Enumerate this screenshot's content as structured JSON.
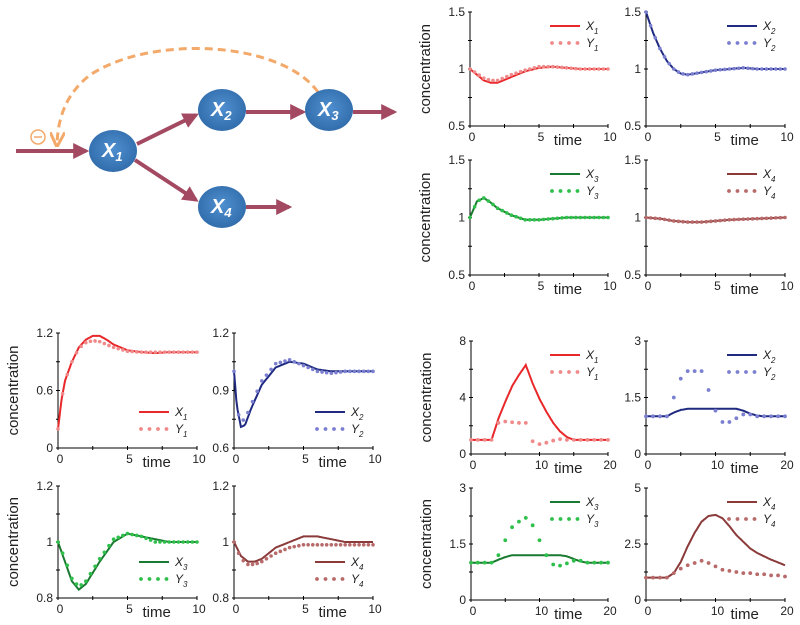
{
  "diagram": {
    "nodes": [
      {
        "id": "X1",
        "letter": "X",
        "sub": "1"
      },
      {
        "id": "X2",
        "letter": "X",
        "sub": "2"
      },
      {
        "id": "X3",
        "letter": "X",
        "sub": "3"
      },
      {
        "id": "X4",
        "letter": "X",
        "sub": "4"
      }
    ],
    "inhibition_symbol": "⊖",
    "colors": {
      "node": "#3a78b8",
      "arrow": "#a34a62",
      "feedback": "#f3a96a"
    }
  },
  "chart_data": [
    {
      "type": "line",
      "group": "A",
      "xlim": [
        0,
        10
      ],
      "ylim": [
        0.5,
        1.5
      ],
      "xticks": [
        0,
        5,
        10
      ],
      "yticks": [
        0.5,
        1,
        1.5
      ],
      "xlabel": "time",
      "ylabel": "concentration",
      "legend_placement": "top-right",
      "series": [
        {
          "name": "X1",
          "style": "solid",
          "color": "#e8282a",
          "x": [
            0,
            0.5,
            1,
            1.5,
            2,
            3,
            4,
            5,
            6,
            7,
            8,
            10
          ],
          "y": [
            1,
            0.95,
            0.9,
            0.88,
            0.88,
            0.93,
            0.98,
            1.01,
            1.02,
            1.01,
            1.0,
            1.0
          ]
        },
        {
          "name": "Y1",
          "style": "dots",
          "color": "#f08a8a",
          "x": [
            0,
            0.5,
            1,
            1.5,
            2,
            3,
            4,
            5,
            6,
            7,
            8,
            10
          ],
          "y": [
            1,
            0.96,
            0.92,
            0.9,
            0.9,
            0.95,
            0.99,
            1.02,
            1.02,
            1.01,
            1.0,
            1.0
          ]
        }
      ]
    },
    {
      "type": "line",
      "group": "A",
      "xlim": [
        0,
        10
      ],
      "ylim": [
        0.5,
        1.5
      ],
      "xticks": [
        0,
        5,
        10
      ],
      "yticks": [
        0.5,
        1,
        1.5
      ],
      "xlabel": "time",
      "ylabel": "",
      "legend_placement": "top-right",
      "series": [
        {
          "name": "X2",
          "style": "solid",
          "color": "#1f2a80",
          "x": [
            0,
            0.5,
            1,
            1.5,
            2,
            2.5,
            3,
            4,
            5,
            6,
            7,
            8,
            10
          ],
          "y": [
            1.5,
            1.32,
            1.18,
            1.07,
            1.0,
            0.96,
            0.95,
            0.97,
            0.99,
            1.0,
            1.01,
            1.0,
            1.0
          ]
        },
        {
          "name": "Y2",
          "style": "dots",
          "color": "#7b7fd0",
          "x": [
            0,
            0.5,
            1,
            1.5,
            2,
            2.5,
            3,
            4,
            5,
            6,
            7,
            8,
            10
          ],
          "y": [
            1.5,
            1.32,
            1.18,
            1.07,
            1.0,
            0.96,
            0.95,
            0.97,
            0.99,
            1.0,
            1.01,
            1.0,
            1.0
          ]
        }
      ]
    },
    {
      "type": "line",
      "group": "A",
      "xlim": [
        0,
        10
      ],
      "ylim": [
        0.5,
        1.5
      ],
      "xticks": [
        0,
        5,
        10
      ],
      "yticks": [
        0.5,
        1,
        1.5
      ],
      "xlabel": "time",
      "ylabel": "concentration",
      "legend_placement": "top-right",
      "series": [
        {
          "name": "X3",
          "style": "solid",
          "color": "#1a7a30",
          "x": [
            0,
            0.5,
            1,
            1.5,
            2,
            3,
            4,
            5,
            6,
            7,
            10
          ],
          "y": [
            1.0,
            1.14,
            1.17,
            1.13,
            1.08,
            1.02,
            0.98,
            0.98,
            0.99,
            1.0,
            1.0
          ]
        },
        {
          "name": "Y3",
          "style": "dots",
          "color": "#2ec04a",
          "x": [
            0,
            0.5,
            1,
            1.5,
            2,
            3,
            4,
            5,
            6,
            7,
            10
          ],
          "y": [
            1.0,
            1.14,
            1.17,
            1.13,
            1.08,
            1.02,
            0.98,
            0.98,
            0.99,
            1.0,
            1.0
          ]
        }
      ]
    },
    {
      "type": "line",
      "group": "A",
      "xlim": [
        0,
        10
      ],
      "ylim": [
        0.5,
        1.5
      ],
      "xticks": [
        0,
        5,
        10
      ],
      "yticks": [
        0.5,
        1,
        1.5
      ],
      "xlabel": "time",
      "ylabel": "",
      "legend_placement": "top-right",
      "series": [
        {
          "name": "X4",
          "style": "solid",
          "color": "#8b3a3a",
          "x": [
            0,
            1,
            2,
            3,
            4,
            5,
            6,
            8,
            10
          ],
          "y": [
            1.0,
            0.99,
            0.97,
            0.96,
            0.96,
            0.97,
            0.98,
            0.99,
            1.0
          ]
        },
        {
          "name": "Y4",
          "style": "dots",
          "color": "#b86a6a",
          "x": [
            0,
            1,
            2,
            3,
            4,
            5,
            6,
            8,
            10
          ],
          "y": [
            1.0,
            0.99,
            0.97,
            0.96,
            0.96,
            0.97,
            0.98,
            0.99,
            1.0
          ]
        }
      ]
    },
    {
      "type": "line",
      "group": "B",
      "xlim": [
        0,
        10
      ],
      "ylim": [
        0,
        1.2
      ],
      "xticks": [
        0,
        5,
        10
      ],
      "yticks": [
        0,
        0.6,
        1.2
      ],
      "xlabel": "time",
      "ylabel": "concentration",
      "legend_placement": "bottom-right",
      "series": [
        {
          "name": "X1",
          "style": "solid",
          "color": "#e8282a",
          "x": [
            0,
            0.25,
            0.5,
            1,
            1.5,
            2,
            2.5,
            3,
            3.5,
            4,
            5,
            6,
            7,
            8,
            10
          ],
          "y": [
            0.2,
            0.5,
            0.7,
            0.9,
            1.05,
            1.13,
            1.17,
            1.17,
            1.13,
            1.08,
            1.02,
            1.0,
            0.99,
            1.0,
            1.0
          ]
        },
        {
          "name": "Y1",
          "style": "dots",
          "color": "#f08a8a",
          "x": [
            0,
            0.25,
            0.5,
            1,
            1.5,
            2,
            2.5,
            3,
            3.5,
            4,
            5,
            6,
            7,
            8,
            10
          ],
          "y": [
            0.2,
            0.5,
            0.7,
            0.9,
            1.04,
            1.1,
            1.12,
            1.11,
            1.08,
            1.05,
            1.01,
            1.0,
            1.0,
            1.0,
            1.0
          ]
        }
      ]
    },
    {
      "type": "line",
      "group": "B",
      "xlim": [
        0,
        10
      ],
      "ylim": [
        0.6,
        1.2
      ],
      "xticks": [
        0,
        5,
        10
      ],
      "yticks": [
        0.6,
        0.9,
        1.2
      ],
      "xlabel": "time",
      "ylabel": "",
      "legend_placement": "bottom-right",
      "series": [
        {
          "name": "X2",
          "style": "solid",
          "color": "#1f2a80",
          "x": [
            0,
            0.2,
            0.5,
            0.8,
            1.2,
            2,
            3,
            4,
            5,
            6,
            7,
            8,
            10
          ],
          "y": [
            1.0,
            0.82,
            0.71,
            0.72,
            0.8,
            0.93,
            1.02,
            1.05,
            1.04,
            1.01,
            1.0,
            1.0,
            1.0
          ]
        },
        {
          "name": "Y2",
          "style": "dots",
          "color": "#7b7fd0",
          "x": [
            0,
            0.2,
            0.5,
            0.8,
            1.2,
            2,
            3,
            4,
            5,
            6,
            7,
            8,
            10
          ],
          "y": [
            1.0,
            0.8,
            0.74,
            0.75,
            0.82,
            0.95,
            1.04,
            1.06,
            1.03,
            1.0,
            0.99,
            1.0,
            1.0
          ]
        }
      ]
    },
    {
      "type": "line",
      "group": "B",
      "xlim": [
        0,
        10
      ],
      "ylim": [
        0.8,
        1.2
      ],
      "xticks": [
        0,
        5,
        10
      ],
      "yticks": [
        0.8,
        1,
        1.2
      ],
      "xlabel": "time",
      "ylabel": "concentration",
      "legend_placement": "bottom-right",
      "series": [
        {
          "name": "X3",
          "style": "solid",
          "color": "#1a7a30",
          "x": [
            0,
            0.5,
            1,
            1.5,
            2,
            3,
            4,
            5,
            6,
            7,
            8,
            10
          ],
          "y": [
            1.0,
            0.93,
            0.86,
            0.83,
            0.85,
            0.93,
            1.0,
            1.03,
            1.02,
            1.01,
            1.0,
            1.0
          ]
        },
        {
          "name": "Y3",
          "style": "dots",
          "color": "#2ec04a",
          "x": [
            0,
            0.5,
            1,
            1.5,
            2,
            3,
            4,
            5,
            6,
            7,
            8,
            10
          ],
          "y": [
            1.0,
            0.94,
            0.87,
            0.84,
            0.86,
            0.94,
            1.01,
            1.03,
            1.02,
            1.0,
            1.0,
            1.0
          ]
        }
      ]
    },
    {
      "type": "line",
      "group": "B",
      "xlim": [
        0,
        10
      ],
      "ylim": [
        0.8,
        1.2
      ],
      "xticks": [
        0,
        5,
        10
      ],
      "yticks": [
        0.8,
        1,
        1.2
      ],
      "xlabel": "time",
      "ylabel": "",
      "legend_placement": "bottom-right",
      "series": [
        {
          "name": "X4",
          "style": "solid",
          "color": "#8b3a3a",
          "x": [
            0,
            0.5,
            1,
            1.5,
            2,
            3,
            4,
            5,
            6,
            7,
            8,
            10
          ],
          "y": [
            1.0,
            0.95,
            0.93,
            0.93,
            0.94,
            0.98,
            1.0,
            1.02,
            1.02,
            1.01,
            1.0,
            1.0
          ]
        },
        {
          "name": "Y4",
          "style": "dots",
          "color": "#b86a6a",
          "x": [
            0,
            0.5,
            1,
            1.5,
            2,
            3,
            4,
            5,
            6,
            10
          ],
          "y": [
            1.0,
            0.94,
            0.92,
            0.92,
            0.93,
            0.96,
            0.98,
            0.99,
            0.99,
            0.99
          ]
        }
      ]
    },
    {
      "type": "line",
      "group": "C",
      "xlim": [
        0,
        20
      ],
      "ylim": [
        0,
        8
      ],
      "xticks": [
        0,
        10,
        20
      ],
      "yticks": [
        0,
        4,
        8
      ],
      "xlabel": "time",
      "ylabel": "concentration",
      "legend_placement": "top-right",
      "series": [
        {
          "name": "X1",
          "style": "solid",
          "color": "#e8282a",
          "x": [
            0,
            3,
            4,
            5,
            6,
            7,
            8,
            9,
            10,
            11,
            12,
            13,
            14,
            15,
            17,
            20
          ],
          "y": [
            1,
            1,
            2.5,
            3.7,
            4.8,
            5.6,
            6.3,
            5.0,
            3.9,
            3.0,
            2.2,
            1.6,
            1.2,
            1.0,
            1.0,
            1.0
          ]
        },
        {
          "name": "Y1",
          "style": "points",
          "color": "#f08a8a",
          "x": [
            0,
            1,
            2,
            3,
            4,
            5,
            6,
            7,
            8,
            9,
            10,
            11,
            12,
            13,
            14,
            15,
            16,
            17,
            18,
            19,
            20
          ],
          "y": [
            1,
            1,
            1,
            1,
            2.2,
            2.3,
            2.25,
            2.2,
            2.2,
            0.9,
            0.7,
            0.8,
            0.95,
            1.05,
            1,
            1,
            1,
            1,
            1,
            1,
            1
          ]
        }
      ]
    },
    {
      "type": "line",
      "group": "C",
      "xlim": [
        0,
        20
      ],
      "ylim": [
        0,
        3
      ],
      "xticks": [
        0,
        10,
        20
      ],
      "yticks": [
        0,
        1.5,
        3
      ],
      "xlabel": "time",
      "ylabel": "",
      "legend_placement": "top-right",
      "series": [
        {
          "name": "X2",
          "style": "solid",
          "color": "#1f2a80",
          "x": [
            0,
            3,
            4,
            5,
            6,
            13,
            14,
            15,
            16,
            17,
            20
          ],
          "y": [
            1,
            1,
            1.1,
            1.17,
            1.2,
            1.2,
            1.15,
            1.07,
            1.02,
            1.0,
            1.0
          ]
        },
        {
          "name": "Y2",
          "style": "points",
          "color": "#7b7fd0",
          "x": [
            0,
            1,
            2,
            3,
            4,
            5,
            6,
            7,
            8,
            9,
            10,
            11,
            12,
            13,
            14,
            15,
            16,
            17,
            18,
            19,
            20
          ],
          "y": [
            1,
            1,
            1,
            1,
            1.5,
            2.0,
            2.2,
            2.2,
            2.2,
            1.7,
            1.15,
            0.85,
            0.85,
            0.95,
            1.05,
            1.05,
            1.0,
            1.0,
            1.0,
            1.0,
            1.0
          ]
        }
      ]
    },
    {
      "type": "line",
      "group": "C",
      "xlim": [
        0,
        20
      ],
      "ylim": [
        0,
        3
      ],
      "xticks": [
        0,
        10,
        20
      ],
      "yticks": [
        0,
        1.5,
        3
      ],
      "xlabel": "time",
      "ylabel": "concentration",
      "legend_placement": "top-right",
      "series": [
        {
          "name": "X3",
          "style": "solid",
          "color": "#1a7a30",
          "x": [
            0,
            3,
            4,
            5,
            6,
            13,
            14,
            15,
            16,
            17,
            20
          ],
          "y": [
            1,
            1,
            1.08,
            1.15,
            1.2,
            1.2,
            1.17,
            1.1,
            1.03,
            1.0,
            1.0
          ]
        },
        {
          "name": "Y3",
          "style": "points",
          "color": "#2ec04a",
          "x": [
            0,
            1,
            2,
            3,
            4,
            5,
            6,
            7,
            8,
            9,
            10,
            11,
            12,
            13,
            14,
            15,
            16,
            17,
            18,
            19,
            20
          ],
          "y": [
            1,
            1,
            1,
            1,
            1.2,
            1.6,
            1.95,
            2.1,
            2.2,
            2.0,
            1.6,
            1.2,
            0.95,
            0.92,
            0.98,
            1.05,
            1.05,
            1.0,
            1.0,
            1.0,
            1.0
          ]
        }
      ]
    },
    {
      "type": "line",
      "group": "C",
      "xlim": [
        0,
        20
      ],
      "ylim": [
        0,
        5
      ],
      "xticks": [
        0,
        10,
        20
      ],
      "yticks": [
        0,
        2.5,
        5
      ],
      "xlabel": "time",
      "ylabel": "",
      "legend_placement": "top-right",
      "series": [
        {
          "name": "X4",
          "style": "solid",
          "color": "#8b3a3a",
          "x": [
            0,
            3,
            4,
            5,
            6,
            7,
            8,
            9,
            10,
            11,
            12,
            13,
            14,
            15,
            16,
            17,
            18,
            19,
            20
          ],
          "y": [
            1,
            1,
            1.2,
            1.7,
            2.4,
            3.0,
            3.5,
            3.75,
            3.8,
            3.65,
            3.3,
            2.9,
            2.6,
            2.3,
            2.1,
            1.95,
            1.8,
            1.68,
            1.55
          ]
        },
        {
          "name": "Y4",
          "style": "points",
          "color": "#b86a6a",
          "x": [
            0,
            1,
            2,
            3,
            4,
            5,
            6,
            7,
            8,
            9,
            10,
            11,
            12,
            13,
            14,
            15,
            16,
            17,
            18,
            19,
            20
          ],
          "y": [
            1,
            1,
            1,
            1,
            1.2,
            1.4,
            1.55,
            1.65,
            1.75,
            1.65,
            1.5,
            1.35,
            1.3,
            1.25,
            1.2,
            1.2,
            1.15,
            1.15,
            1.1,
            1.1,
            1.05
          ]
        }
      ]
    }
  ]
}
